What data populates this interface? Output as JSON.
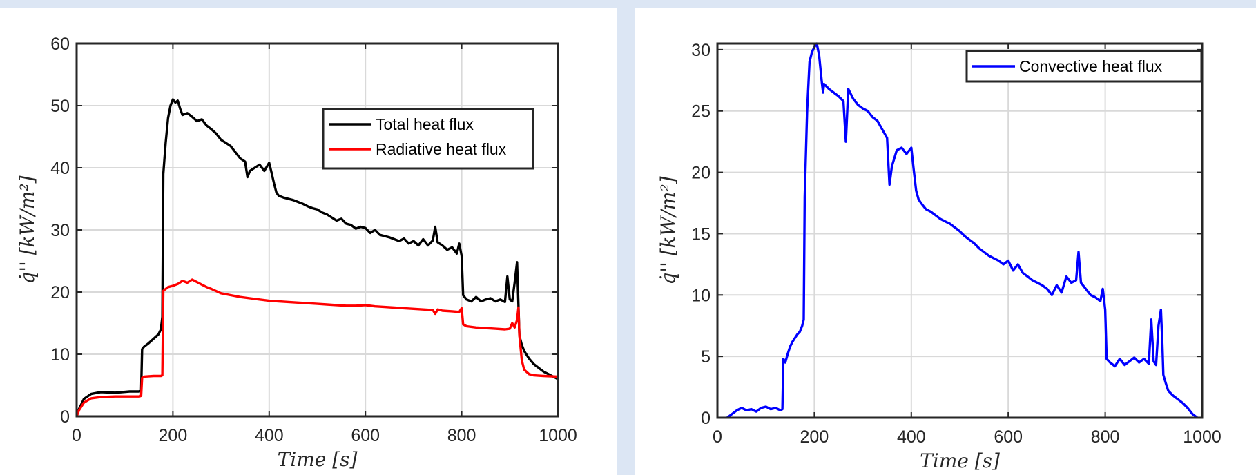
{
  "chart_data": [
    {
      "type": "line",
      "title": "",
      "xlabel": "Time [s]",
      "ylabel": "q̇'' [kW/m²]",
      "xlim": [
        0,
        1000
      ],
      "ylim": [
        0,
        60
      ],
      "xticks": [
        "0",
        "200",
        "400",
        "600",
        "800",
        "1000"
      ],
      "yticks": [
        "0",
        "10",
        "20",
        "30",
        "40",
        "50",
        "60"
      ],
      "grid": true,
      "legend_position": "top-right",
      "series": [
        {
          "name": "Total heat flux",
          "color": "#000000",
          "x": [
            0,
            5,
            15,
            30,
            50,
            80,
            110,
            130,
            134,
            136,
            140,
            150,
            160,
            170,
            175,
            178,
            180,
            185,
            190,
            195,
            200,
            205,
            210,
            215,
            220,
            230,
            240,
            250,
            260,
            270,
            280,
            290,
            300,
            310,
            320,
            330,
            340,
            350,
            355,
            360,
            370,
            380,
            390,
            400,
            405,
            410,
            415,
            420,
            430,
            440,
            450,
            460,
            470,
            480,
            490,
            500,
            510,
            520,
            530,
            540,
            550,
            560,
            570,
            580,
            590,
            600,
            610,
            620,
            630,
            640,
            650,
            660,
            670,
            680,
            690,
            700,
            710,
            720,
            730,
            740,
            745,
            750,
            760,
            770,
            780,
            790,
            795,
            800,
            803,
            810,
            820,
            830,
            840,
            850,
            860,
            870,
            880,
            890,
            895,
            900,
            905,
            910,
            915,
            918,
            920,
            925,
            930,
            940,
            950,
            960,
            970,
            980,
            990,
            1000
          ],
          "values": [
            0,
            1.2,
            2.8,
            3.6,
            3.9,
            3.8,
            4.0,
            4.0,
            4.1,
            10.8,
            11.2,
            11.8,
            12.5,
            13.2,
            14,
            16,
            39,
            44,
            48,
            50,
            51,
            50.5,
            50.8,
            49.5,
            48.5,
            48.8,
            48.2,
            47.5,
            47.8,
            46.8,
            46.2,
            45.5,
            44.5,
            44,
            43.5,
            42.5,
            41.5,
            41,
            38.5,
            39.5,
            40,
            40.5,
            39.5,
            40.8,
            39.2,
            37.5,
            36,
            35.5,
            35.2,
            35,
            34.8,
            34.5,
            34.2,
            33.8,
            33.5,
            33.3,
            32.8,
            32.5,
            32,
            31.5,
            31.8,
            31,
            30.8,
            30.2,
            30.5,
            30.3,
            29.5,
            30,
            29.2,
            29,
            28.8,
            28.5,
            28.2,
            28.6,
            27.8,
            28.2,
            27.5,
            28.5,
            27.5,
            28.3,
            30.5,
            28,
            27.5,
            26.8,
            27.2,
            26.2,
            27.8,
            25.8,
            19.5,
            18.8,
            18.5,
            19.2,
            18.5,
            18.8,
            19,
            18.5,
            18.8,
            18.4,
            22.5,
            18.8,
            18.5,
            21.5,
            24.8,
            18,
            13,
            11.5,
            10.5,
            9.3,
            8.4,
            7.8,
            7.2,
            6.8,
            6.4,
            6.0
          ]
        },
        {
          "name": "Radiative heat flux",
          "color": "#ff0000",
          "x": [
            0,
            5,
            15,
            30,
            50,
            80,
            110,
            130,
            134,
            136,
            140,
            160,
            170,
            175,
            178,
            180,
            190,
            200,
            210,
            220,
            230,
            240,
            250,
            260,
            270,
            280,
            300,
            320,
            340,
            360,
            380,
            400,
            420,
            440,
            460,
            480,
            500,
            520,
            540,
            560,
            580,
            600,
            620,
            640,
            660,
            680,
            700,
            720,
            740,
            745,
            750,
            760,
            780,
            795,
            800,
            803,
            810,
            830,
            850,
            870,
            890,
            900,
            905,
            910,
            915,
            918,
            920,
            925,
            930,
            940,
            950,
            970,
            1000
          ],
          "values": [
            0,
            1.0,
            2.2,
            2.9,
            3.1,
            3.2,
            3.2,
            3.2,
            3.3,
            6.2,
            6.4,
            6.5,
            6.5,
            6.5,
            6.6,
            20.2,
            20.8,
            21,
            21.3,
            21.8,
            21.5,
            22,
            21.6,
            21.2,
            20.8,
            20.5,
            19.8,
            19.5,
            19.2,
            19,
            18.8,
            18.6,
            18.5,
            18.4,
            18.3,
            18.2,
            18.1,
            18,
            17.9,
            17.8,
            17.8,
            17.9,
            17.7,
            17.6,
            17.5,
            17.4,
            17.3,
            17.2,
            17.1,
            16.5,
            17.2,
            17,
            16.9,
            16.8,
            17.4,
            14.8,
            14.5,
            14.3,
            14.2,
            14.1,
            14.0,
            14.1,
            15,
            14.3,
            15.5,
            17.5,
            13,
            9,
            7.5,
            6.8,
            6.6,
            6.5,
            6.4
          ]
        }
      ]
    },
    {
      "type": "line",
      "title": "",
      "xlabel": "Time [s]",
      "ylabel": "q̇'' [kW/m²]",
      "xlim": [
        0,
        1000
      ],
      "ylim": [
        0,
        30.5
      ],
      "xticks": [
        "0",
        "200",
        "400",
        "600",
        "800",
        "1000"
      ],
      "yticks": [
        "0",
        "5",
        "10",
        "15",
        "20",
        "25",
        "30"
      ],
      "grid": true,
      "legend_position": "top-right",
      "series": [
        {
          "name": "Convective heat flux",
          "color": "#0000ff",
          "x": [
            20,
            30,
            40,
            50,
            60,
            70,
            80,
            90,
            100,
            110,
            120,
            130,
            134,
            136,
            140,
            145,
            150,
            155,
            160,
            165,
            170,
            175,
            178,
            180,
            185,
            190,
            195,
            200,
            205,
            210,
            215,
            218,
            220,
            225,
            230,
            240,
            250,
            260,
            265,
            270,
            280,
            290,
            300,
            310,
            320,
            330,
            340,
            350,
            355,
            360,
            370,
            380,
            390,
            400,
            405,
            410,
            415,
            420,
            430,
            440,
            450,
            460,
            470,
            480,
            490,
            500,
            510,
            520,
            530,
            540,
            550,
            560,
            570,
            580,
            590,
            600,
            610,
            620,
            630,
            640,
            650,
            660,
            670,
            680,
            690,
            700,
            710,
            720,
            730,
            740,
            745,
            750,
            760,
            770,
            780,
            790,
            795,
            800,
            803,
            810,
            820,
            830,
            840,
            850,
            860,
            870,
            880,
            890,
            895,
            900,
            905,
            910,
            915,
            918,
            920,
            925,
            930,
            940,
            950,
            960,
            970,
            980,
            990
          ],
          "values": [
            0,
            0.3,
            0.6,
            0.8,
            0.6,
            0.7,
            0.5,
            0.8,
            0.9,
            0.7,
            0.8,
            0.6,
            0.7,
            4.8,
            4.5,
            5.2,
            5.8,
            6.2,
            6.5,
            6.8,
            7.0,
            7.5,
            8,
            18,
            25,
            29,
            29.8,
            30.2,
            30.5,
            29.5,
            27.5,
            26.5,
            27.2,
            27,
            26.8,
            26.5,
            26.2,
            25.8,
            22.5,
            26.8,
            26,
            25.5,
            25.2,
            25,
            24.5,
            24.2,
            23.5,
            22.8,
            19,
            20.5,
            21.8,
            22,
            21.5,
            22,
            20.2,
            18.5,
            17.8,
            17.5,
            17,
            16.8,
            16.5,
            16.2,
            16,
            15.8,
            15.5,
            15.2,
            14.8,
            14.5,
            14.2,
            13.8,
            13.5,
            13.2,
            13,
            12.8,
            12.5,
            12.8,
            12,
            12.5,
            11.8,
            11.5,
            11.2,
            11,
            10.8,
            10.5,
            10,
            10.8,
            10.2,
            11.5,
            11,
            11.2,
            13.5,
            11,
            10.5,
            10,
            9.8,
            9.5,
            10.5,
            8.8,
            4.8,
            4.5,
            4.2,
            4.8,
            4.3,
            4.6,
            4.9,
            4.5,
            4.8,
            4.4,
            8,
            4.6,
            4.3,
            7.5,
            8.8,
            6,
            3.5,
            2.8,
            2.2,
            1.8,
            1.5,
            1.2,
            0.8,
            0.3,
            0
          ]
        }
      ]
    }
  ]
}
